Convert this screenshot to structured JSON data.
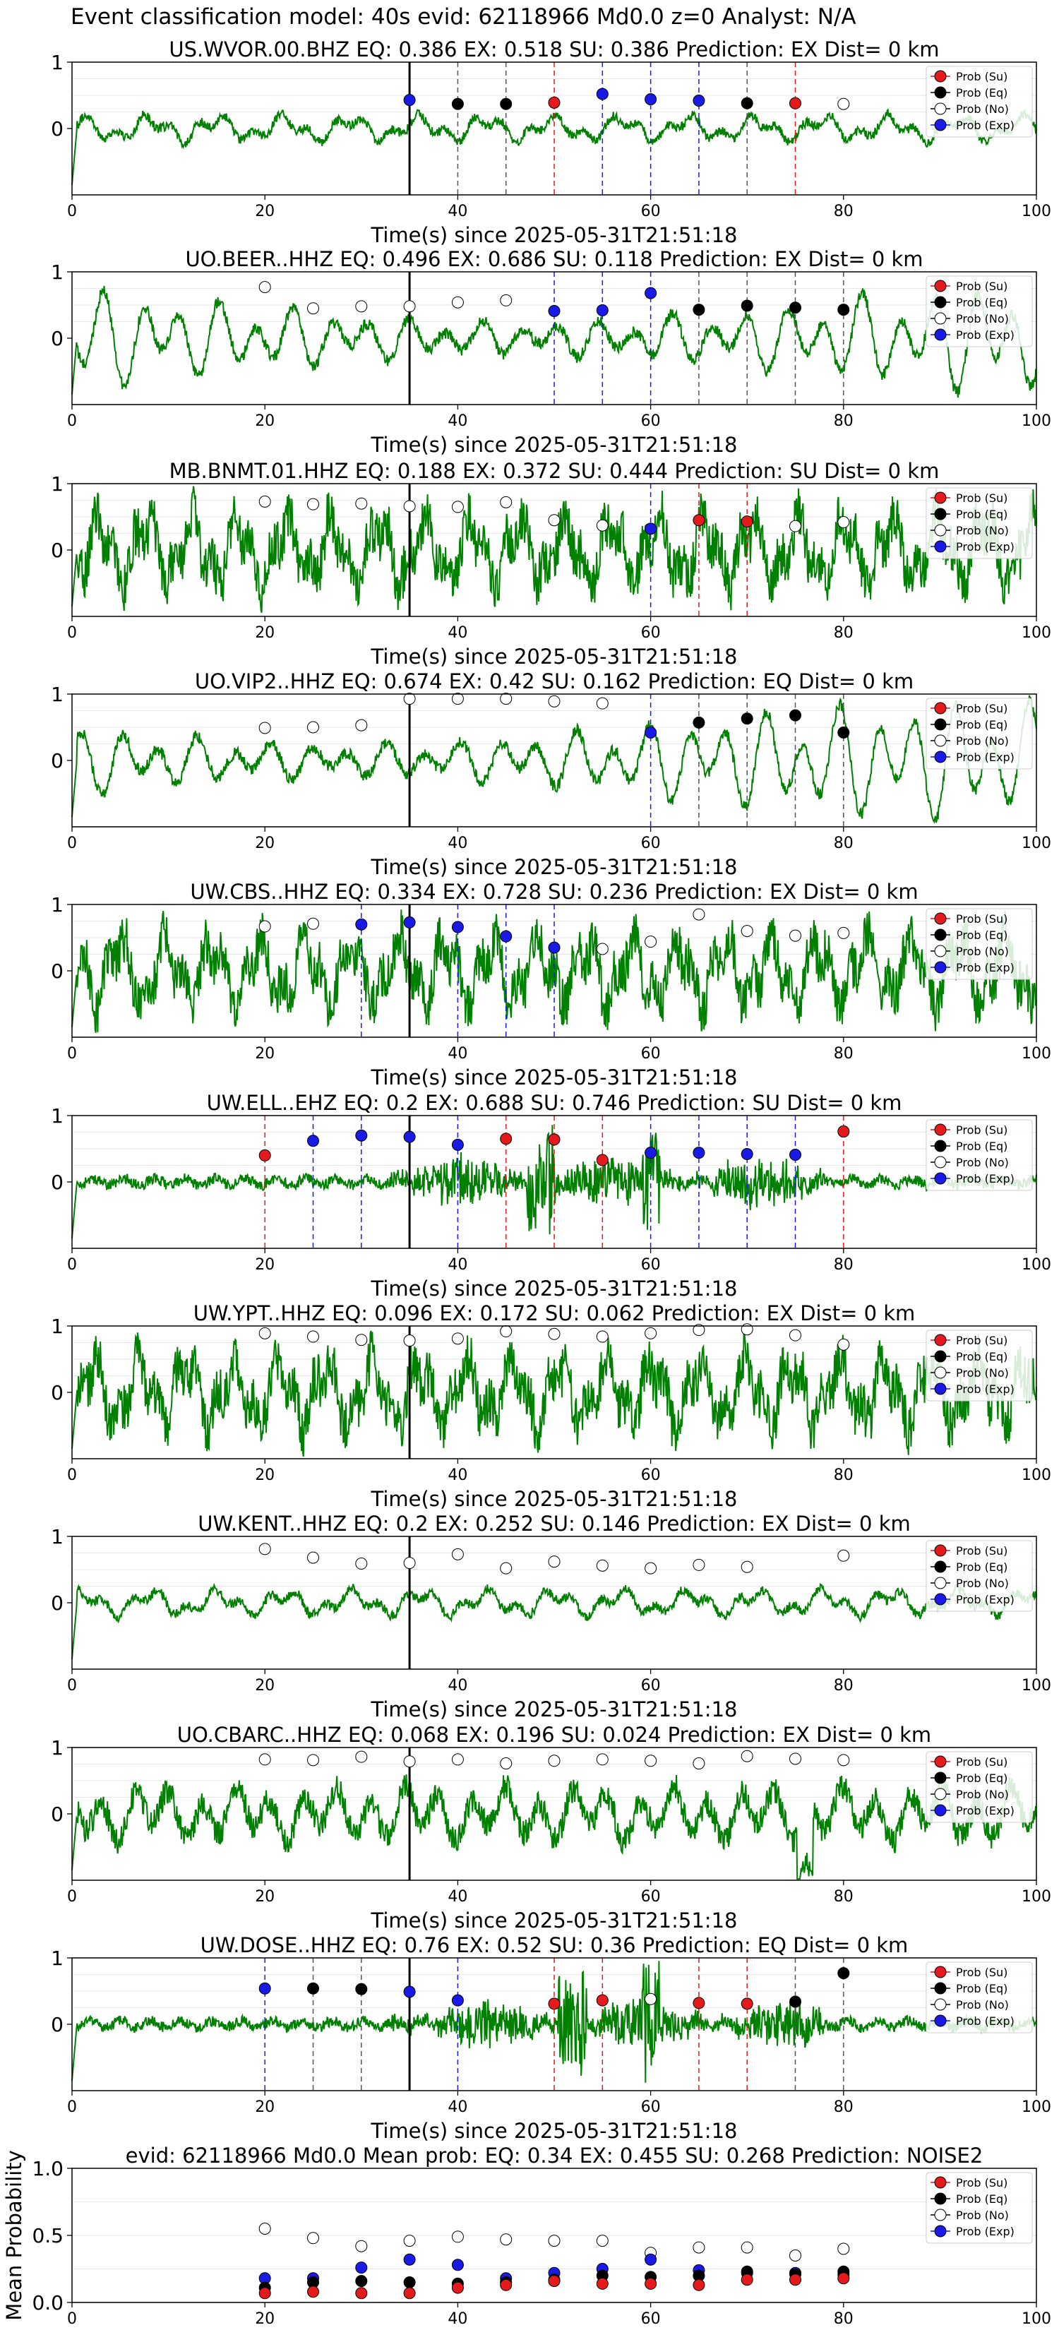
{
  "figure_title": "Event classification model: 40s evid: 62118966 Md0.0 z=0 Analyst: N/A",
  "legend": {
    "labels": [
      "Prob (Su)",
      "Prob (Eq)",
      "Prob (No)",
      "Prob (Exp)"
    ],
    "colors": [
      "#e41a1c",
      "#000000",
      "#ffffff",
      "#1a1ae6"
    ]
  },
  "colors": {
    "waveform": "#008000",
    "su": "#e41a1c",
    "eq": "#000000",
    "no": "#ffffff",
    "exp": "#1a1ae6",
    "onset_line": "#000000"
  },
  "chart_data": [
    {
      "type": "line",
      "title": "US.WVOR.00.BHZ   EQ: 0.386  EX: 0.518  SU: 0.386   Prediction: EX    Dist= 0 km",
      "xlabel": "Time(s) since 2025-05-31T21:51:18",
      "xlim": [
        0,
        100
      ],
      "ylim": [
        -1,
        1
      ],
      "xticks": [
        0,
        20,
        40,
        60,
        80,
        100
      ],
      "yticks": [
        0,
        1
      ],
      "onset": 35,
      "amplitude": "low",
      "points": [
        [
          35,
          0.43,
          "exp"
        ],
        [
          40,
          0.37,
          "eq"
        ],
        [
          45,
          0.37,
          "eq"
        ],
        [
          50,
          0.39,
          "su"
        ],
        [
          55,
          0.52,
          "exp"
        ],
        [
          60,
          0.44,
          "exp"
        ],
        [
          65,
          0.42,
          "exp"
        ],
        [
          70,
          0.38,
          "eq"
        ],
        [
          75,
          0.38,
          "su"
        ],
        [
          80,
          0.37,
          "no"
        ]
      ]
    },
    {
      "type": "line",
      "title": "UO.BEER..HHZ   EQ: 0.496  EX: 0.686  SU: 0.118   Prediction: EX    Dist= 0 km",
      "xlabel": "Time(s) since 2025-05-31T21:51:18",
      "xlim": [
        0,
        100
      ],
      "ylim": [
        -1,
        1
      ],
      "xticks": [
        0,
        20,
        40,
        60,
        80,
        100
      ],
      "yticks": [
        0,
        1
      ],
      "onset": 35,
      "amplitude": "smooth",
      "points": [
        [
          20,
          0.77,
          "no"
        ],
        [
          25,
          0.45,
          "no"
        ],
        [
          30,
          0.48,
          "no"
        ],
        [
          35,
          0.48,
          "no"
        ],
        [
          40,
          0.54,
          "no"
        ],
        [
          45,
          0.57,
          "no"
        ],
        [
          50,
          0.41,
          "exp"
        ],
        [
          55,
          0.42,
          "exp"
        ],
        [
          60,
          0.68,
          "exp"
        ],
        [
          65,
          0.43,
          "eq"
        ],
        [
          70,
          0.49,
          "eq"
        ],
        [
          75,
          0.46,
          "eq"
        ],
        [
          80,
          0.43,
          "eq"
        ]
      ]
    },
    {
      "type": "line",
      "title": "MB.BNMT.01.HHZ   EQ: 0.188  EX: 0.372  SU: 0.444   Prediction: SU    Dist= 0 km",
      "xlabel": "Time(s) since 2025-05-31T21:51:18",
      "xlim": [
        0,
        100
      ],
      "ylim": [
        -1,
        1
      ],
      "xticks": [
        0,
        20,
        40,
        60,
        80,
        100
      ],
      "yticks": [
        0,
        1
      ],
      "onset": 35,
      "amplitude": "high",
      "points": [
        [
          20,
          0.73,
          "no"
        ],
        [
          25,
          0.69,
          "no"
        ],
        [
          30,
          0.7,
          "no"
        ],
        [
          35,
          0.66,
          "no"
        ],
        [
          40,
          0.65,
          "no"
        ],
        [
          45,
          0.72,
          "no"
        ],
        [
          50,
          0.45,
          "no"
        ],
        [
          55,
          0.37,
          "no"
        ],
        [
          60,
          0.32,
          "exp"
        ],
        [
          65,
          0.45,
          "su"
        ],
        [
          70,
          0.43,
          "su"
        ],
        [
          75,
          0.36,
          "no"
        ],
        [
          80,
          0.42,
          "no"
        ]
      ]
    },
    {
      "type": "line",
      "title": "UO.VIP2..HHZ   EQ: 0.674  EX: 0.42  SU: 0.162   Prediction: EQ    Dist= 0 km",
      "xlabel": "Time(s) since 2025-05-31T21:51:18",
      "xlim": [
        0,
        100
      ],
      "ylim": [
        -1,
        1
      ],
      "xticks": [
        0,
        20,
        40,
        60,
        80,
        100
      ],
      "yticks": [
        0,
        1
      ],
      "onset": 35,
      "amplitude": "smooth",
      "points": [
        [
          20,
          0.49,
          "no"
        ],
        [
          25,
          0.5,
          "no"
        ],
        [
          30,
          0.53,
          "no"
        ],
        [
          35,
          0.93,
          "no"
        ],
        [
          40,
          0.93,
          "no"
        ],
        [
          45,
          0.93,
          "no"
        ],
        [
          50,
          0.89,
          "no"
        ],
        [
          55,
          0.86,
          "no"
        ],
        [
          60,
          0.42,
          "exp"
        ],
        [
          65,
          0.57,
          "eq"
        ],
        [
          70,
          0.63,
          "eq"
        ],
        [
          75,
          0.68,
          "eq"
        ],
        [
          80,
          0.42,
          "eq"
        ]
      ]
    },
    {
      "type": "line",
      "title": "UW.CBS..HHZ   EQ: 0.334  EX: 0.728  SU: 0.236   Prediction: EX    Dist= 0 km",
      "xlabel": "Time(s) since 2025-05-31T21:51:18",
      "xlim": [
        0,
        100
      ],
      "ylim": [
        -1,
        1
      ],
      "xticks": [
        0,
        20,
        40,
        60,
        80,
        100
      ],
      "yticks": [
        0,
        1
      ],
      "onset": 35,
      "amplitude": "high",
      "points": [
        [
          20,
          0.67,
          "no"
        ],
        [
          25,
          0.71,
          "no"
        ],
        [
          30,
          0.7,
          "exp"
        ],
        [
          35,
          0.73,
          "exp"
        ],
        [
          40,
          0.66,
          "exp"
        ],
        [
          45,
          0.52,
          "exp"
        ],
        [
          50,
          0.35,
          "exp"
        ],
        [
          55,
          0.33,
          "no"
        ],
        [
          60,
          0.44,
          "no"
        ],
        [
          65,
          0.85,
          "no"
        ],
        [
          70,
          0.6,
          "no"
        ],
        [
          75,
          0.53,
          "no"
        ],
        [
          80,
          0.57,
          "no"
        ]
      ]
    },
    {
      "type": "line",
      "title": "UW.ELL..EHZ   EQ: 0.2  EX: 0.688  SU: 0.746   Prediction: SU    Dist= 0 km",
      "xlabel": "Time(s) since 2025-05-31T21:51:18",
      "xlim": [
        0,
        100
      ],
      "ylim": [
        -1,
        1
      ],
      "xticks": [
        0,
        20,
        40,
        60,
        80,
        100
      ],
      "yticks": [
        0,
        1
      ],
      "onset": 35,
      "amplitude": "burst",
      "points": [
        [
          20,
          0.4,
          "su"
        ],
        [
          25,
          0.62,
          "exp"
        ],
        [
          30,
          0.7,
          "exp"
        ],
        [
          35,
          0.68,
          "exp"
        ],
        [
          40,
          0.56,
          "exp"
        ],
        [
          45,
          0.65,
          "su"
        ],
        [
          50,
          0.64,
          "su"
        ],
        [
          55,
          0.33,
          "su"
        ],
        [
          60,
          0.44,
          "exp"
        ],
        [
          65,
          0.44,
          "exp"
        ],
        [
          70,
          0.42,
          "exp"
        ],
        [
          75,
          0.41,
          "exp"
        ],
        [
          80,
          0.76,
          "su"
        ]
      ]
    },
    {
      "type": "line",
      "title": "UW.YPT..HHZ   EQ: 0.096  EX: 0.172  SU: 0.062   Prediction: EX    Dist= 0 km",
      "xlabel": "Time(s) since 2025-05-31T21:51:18",
      "xlim": [
        0,
        100
      ],
      "ylim": [
        -1,
        1
      ],
      "xticks": [
        0,
        20,
        40,
        60,
        80,
        100
      ],
      "yticks": [
        0,
        1
      ],
      "onset": 35,
      "amplitude": "high",
      "points": [
        [
          20,
          0.89,
          "no"
        ],
        [
          25,
          0.84,
          "no"
        ],
        [
          30,
          0.79,
          "no"
        ],
        [
          35,
          0.78,
          "no"
        ],
        [
          40,
          0.81,
          "no"
        ],
        [
          45,
          0.92,
          "no"
        ],
        [
          50,
          0.88,
          "no"
        ],
        [
          55,
          0.84,
          "no"
        ],
        [
          60,
          0.89,
          "no"
        ],
        [
          65,
          0.94,
          "no"
        ],
        [
          70,
          0.95,
          "no"
        ],
        [
          75,
          0.86,
          "no"
        ],
        [
          80,
          0.72,
          "no"
        ]
      ]
    },
    {
      "type": "line",
      "title": "UW.KENT..HHZ   EQ: 0.2  EX: 0.252  SU: 0.146   Prediction: EX    Dist= 0 km",
      "xlabel": "Time(s) since 2025-05-31T21:51:18",
      "xlim": [
        0,
        100
      ],
      "ylim": [
        -1,
        1
      ],
      "xticks": [
        0,
        20,
        40,
        60,
        80,
        100
      ],
      "yticks": [
        0,
        1
      ],
      "onset": 35,
      "amplitude": "low",
      "points": [
        [
          20,
          0.81,
          "no"
        ],
        [
          25,
          0.68,
          "no"
        ],
        [
          30,
          0.59,
          "no"
        ],
        [
          35,
          0.6,
          "no"
        ],
        [
          40,
          0.73,
          "no"
        ],
        [
          45,
          0.52,
          "no"
        ],
        [
          50,
          0.62,
          "no"
        ],
        [
          55,
          0.56,
          "no"
        ],
        [
          60,
          0.52,
          "no"
        ],
        [
          65,
          0.57,
          "no"
        ],
        [
          70,
          0.54,
          "no"
        ],
        [
          80,
          0.71,
          "no"
        ]
      ]
    },
    {
      "type": "line",
      "title": "UO.CBARC..HHZ   EQ: 0.068  EX: 0.196  SU: 0.024   Prediction: EX    Dist= 0 km",
      "xlabel": "Time(s) since 2025-05-31T21:51:18",
      "xlim": [
        0,
        100
      ],
      "ylim": [
        -1,
        1
      ],
      "xticks": [
        0,
        20,
        40,
        60,
        80,
        100
      ],
      "yticks": [
        0,
        1
      ],
      "onset": 35,
      "amplitude": "mid",
      "points": [
        [
          20,
          0.82,
          "no"
        ],
        [
          25,
          0.81,
          "no"
        ],
        [
          30,
          0.86,
          "no"
        ],
        [
          35,
          0.79,
          "no"
        ],
        [
          40,
          0.82,
          "no"
        ],
        [
          45,
          0.76,
          "no"
        ],
        [
          50,
          0.8,
          "no"
        ],
        [
          55,
          0.82,
          "no"
        ],
        [
          60,
          0.8,
          "no"
        ],
        [
          65,
          0.76,
          "no"
        ],
        [
          70,
          0.87,
          "no"
        ],
        [
          75,
          0.83,
          "no"
        ],
        [
          80,
          0.81,
          "no"
        ]
      ]
    },
    {
      "type": "line",
      "title": "UW.DOSE..HHZ   EQ: 0.76  EX: 0.52  SU: 0.36   Prediction: EQ    Dist= 0 km",
      "xlabel": "Time(s) since 2025-05-31T21:51:18",
      "xlim": [
        0,
        100
      ],
      "ylim": [
        -1,
        1
      ],
      "xticks": [
        0,
        20,
        40,
        60,
        80,
        100
      ],
      "yticks": [
        0,
        1
      ],
      "onset": 35,
      "amplitude": "burst",
      "points": [
        [
          20,
          0.54,
          "exp"
        ],
        [
          25,
          0.54,
          "eq"
        ],
        [
          30,
          0.53,
          "eq"
        ],
        [
          35,
          0.49,
          "exp"
        ],
        [
          40,
          0.36,
          "exp"
        ],
        [
          50,
          0.31,
          "su"
        ],
        [
          55,
          0.36,
          "su"
        ],
        [
          60,
          0.38,
          "no"
        ],
        [
          65,
          0.32,
          "su"
        ],
        [
          70,
          0.31,
          "su"
        ],
        [
          75,
          0.34,
          "eq"
        ],
        [
          80,
          0.77,
          "eq"
        ]
      ]
    },
    {
      "type": "scatter",
      "title": "evid: 62118966  Md0.0   Mean prob:   EQ: 0.34  EX: 0.455  SU: 0.268   Prediction: NOISE2",
      "xlabel": "",
      "ylabel": "Mean Probability",
      "xlim": [
        0,
        100
      ],
      "ylim": [
        0,
        1
      ],
      "xticks": [
        0,
        20,
        40,
        60,
        80,
        100
      ],
      "yticks": [
        0.0,
        0.5,
        1.0
      ],
      "series": [
        {
          "name": "Prob (No)",
          "kind": "no",
          "x": [
            20,
            25,
            30,
            35,
            40,
            45,
            50,
            55,
            60,
            65,
            70,
            75,
            80
          ],
          "values": [
            0.55,
            0.48,
            0.42,
            0.46,
            0.49,
            0.47,
            0.46,
            0.46,
            0.37,
            0.41,
            0.41,
            0.35,
            0.4
          ]
        },
        {
          "name": "Prob (Exp)",
          "kind": "exp",
          "x": [
            20,
            25,
            30,
            35,
            40,
            45,
            50,
            55,
            60,
            65,
            70,
            75,
            80
          ],
          "values": [
            0.18,
            0.18,
            0.26,
            0.32,
            0.28,
            0.18,
            0.22,
            0.25,
            0.32,
            0.24,
            0.22,
            0.22,
            0.21
          ]
        },
        {
          "name": "Prob (Eq)",
          "kind": "eq",
          "x": [
            20,
            25,
            30,
            35,
            40,
            45,
            50,
            55,
            60,
            65,
            70,
            75,
            80
          ],
          "values": [
            0.11,
            0.15,
            0.16,
            0.15,
            0.14,
            0.15,
            0.17,
            0.2,
            0.19,
            0.2,
            0.23,
            0.21,
            0.23
          ]
        },
        {
          "name": "Prob (Su)",
          "kind": "su",
          "x": [
            20,
            25,
            30,
            35,
            40,
            45,
            50,
            55,
            60,
            65,
            70,
            75,
            80
          ],
          "values": [
            0.07,
            0.08,
            0.07,
            0.07,
            0.11,
            0.13,
            0.16,
            0.14,
            0.14,
            0.13,
            0.17,
            0.17,
            0.18
          ]
        }
      ]
    }
  ]
}
